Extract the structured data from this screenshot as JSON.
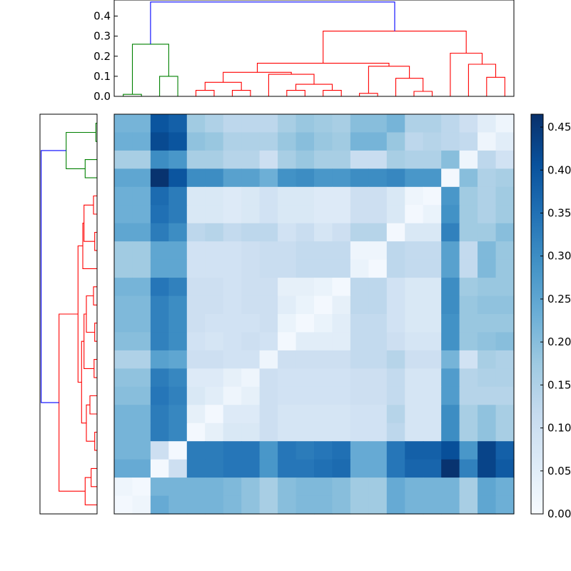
{
  "chart_data": {
    "type": "heatmap",
    "title": "",
    "description_kind": "clustered distance heatmap with dendrograms",
    "n": 22,
    "top_dendrogram": {
      "yticks": [
        "0.0",
        "0.1",
        "0.2",
        "0.3",
        "0.4"
      ],
      "ylim": [
        0,
        0.48
      ],
      "colors": {
        "root": "#0000ff",
        "cluster_a": "#008000",
        "cluster_b": "#ff0000"
      },
      "links": [
        {
          "a": 0,
          "b": 1,
          "h": 0.01,
          "c": "cluster_a"
        },
        {
          "a": 2,
          "b": 3,
          "h": 0.1,
          "c": "cluster_a"
        },
        {
          "a": "L0",
          "b": "L1",
          "h": 0.26,
          "c": "cluster_a"
        },
        {
          "a": 4,
          "b": 5,
          "h": 0.03,
          "c": "cluster_b"
        },
        {
          "a": 6,
          "b": 7,
          "h": 0.03,
          "c": "cluster_b"
        },
        {
          "a": "L3",
          "b": "L4",
          "h": 0.07,
          "c": "cluster_b"
        },
        {
          "a": 9,
          "b": 10,
          "h": 0.03,
          "c": "cluster_b"
        },
        {
          "a": 11,
          "b": 12,
          "h": 0.03,
          "c": "cluster_b"
        },
        {
          "a": "L6",
          "b": "L7",
          "h": 0.06,
          "c": "cluster_b"
        },
        {
          "a": 8,
          "b": "L8",
          "h": 0.11,
          "c": "cluster_b"
        },
        {
          "a": "L5",
          "b": "L9",
          "h": 0.12,
          "c": "cluster_b"
        },
        {
          "a": 13,
          "b": 14,
          "h": 0.015,
          "c": "cluster_b"
        },
        {
          "a": 16,
          "b": 17,
          "h": 0.025,
          "c": "cluster_b"
        },
        {
          "a": 15,
          "b": "L12",
          "h": 0.09,
          "c": "cluster_b"
        },
        {
          "a": "L11",
          "b": "L13",
          "h": 0.15,
          "c": "cluster_b"
        },
        {
          "a": "L10",
          "b": "L14",
          "h": 0.165,
          "c": "cluster_b"
        },
        {
          "a": 20,
          "b": 21,
          "h": 0.095,
          "c": "cluster_b"
        },
        {
          "a": 19,
          "b": "L16",
          "h": 0.16,
          "c": "cluster_b"
        },
        {
          "a": 18,
          "b": "L17",
          "h": 0.215,
          "c": "cluster_b"
        },
        {
          "a": "L15",
          "b": "L18",
          "h": 0.325,
          "c": "cluster_b"
        },
        {
          "a": "L2",
          "b": "L19",
          "h": 0.47,
          "c": "root"
        }
      ]
    },
    "left_dendrogram": {
      "xlim": [
        0,
        0.48
      ],
      "colors": {
        "root": "#0000ff",
        "cluster_a": "#008000",
        "cluster_b": "#ff0000"
      },
      "links": [
        {
          "a": 0,
          "b": 1,
          "h": 0.01,
          "c": "cluster_a"
        },
        {
          "a": 2,
          "b": 3,
          "h": 0.1,
          "c": "cluster_a"
        },
        {
          "a": "L0",
          "b": "L1",
          "h": 0.26,
          "c": "cluster_a"
        },
        {
          "a": 4,
          "b": 5,
          "h": 0.03,
          "c": "cluster_b"
        },
        {
          "a": 6,
          "b": 7,
          "h": 0.02,
          "c": "cluster_b"
        },
        {
          "a": "L3",
          "b": "L4",
          "h": 0.11,
          "c": "cluster_b"
        },
        {
          "a": 8,
          "b": "L5",
          "h": 0.12,
          "c": "cluster_b"
        },
        {
          "a": 9,
          "b": 10,
          "h": 0.03,
          "c": "cluster_b"
        },
        {
          "a": 11,
          "b": 12,
          "h": 0.02,
          "c": "cluster_b"
        },
        {
          "a": "L7",
          "b": "L8",
          "h": 0.09,
          "c": "cluster_b"
        },
        {
          "a": 13,
          "b": 14,
          "h": 0.025,
          "c": "cluster_b"
        },
        {
          "a": "L9",
          "b": "L10",
          "h": 0.11,
          "c": "cluster_b"
        },
        {
          "a": 15,
          "b": 16,
          "h": 0.06,
          "c": "cluster_b"
        },
        {
          "a": 17,
          "b": 18,
          "h": 0.02,
          "c": "cluster_b"
        },
        {
          "a": "L12",
          "b": "L13",
          "h": 0.09,
          "c": "cluster_b"
        },
        {
          "a": "L11",
          "b": "L14",
          "h": 0.13,
          "c": "cluster_b"
        },
        {
          "a": "L6",
          "b": "L15",
          "h": 0.16,
          "c": "cluster_b"
        },
        {
          "a": 19,
          "b": 20,
          "h": 0.05,
          "c": "cluster_b"
        },
        {
          "a": 21,
          "b": "L17",
          "h": 0.1,
          "c": "cluster_b"
        },
        {
          "a": "L16",
          "b": "L18",
          "h": 0.32,
          "c": "cluster_b"
        },
        {
          "a": "L2",
          "b": "L19",
          "h": 0.47,
          "c": "root"
        }
      ]
    },
    "colorbar": {
      "vmin": 0,
      "vmax": 0.465,
      "ticks": [
        "0.00",
        "0.05",
        "0.10",
        "0.15",
        "0.20",
        "0.25",
        "0.30",
        "0.35",
        "0.40",
        "0.45"
      ],
      "colormap": "Blues"
    },
    "matrix": [
      [
        0.22,
        0.22,
        0.4,
        0.38,
        0.17,
        0.15,
        0.13,
        0.13,
        0.13,
        0.16,
        0.18,
        0.17,
        0.16,
        0.2,
        0.2,
        0.22,
        0.15,
        0.15,
        0.13,
        0.1,
        0.05,
        0.02
      ],
      [
        0.23,
        0.23,
        0.42,
        0.4,
        0.19,
        0.18,
        0.15,
        0.15,
        0.15,
        0.18,
        0.2,
        0.18,
        0.17,
        0.22,
        0.22,
        0.18,
        0.13,
        0.14,
        0.13,
        0.12,
        0.02,
        0.05
      ],
      [
        0.16,
        0.16,
        0.3,
        0.28,
        0.16,
        0.16,
        0.14,
        0.14,
        0.1,
        0.16,
        0.18,
        0.16,
        0.16,
        0.11,
        0.11,
        0.16,
        0.15,
        0.15,
        0.2,
        0.02,
        0.13,
        0.09
      ],
      [
        0.25,
        0.25,
        0.46,
        0.4,
        0.3,
        0.3,
        0.26,
        0.26,
        0.23,
        0.29,
        0.3,
        0.28,
        0.28,
        0.3,
        0.3,
        0.31,
        0.28,
        0.28,
        0.01,
        0.2,
        0.15,
        0.16
      ],
      [
        0.23,
        0.23,
        0.36,
        0.33,
        0.07,
        0.07,
        0.06,
        0.07,
        0.09,
        0.07,
        0.07,
        0.06,
        0.06,
        0.1,
        0.1,
        0.07,
        0.02,
        0.01,
        0.28,
        0.17,
        0.15,
        0.17
      ],
      [
        0.23,
        0.23,
        0.35,
        0.33,
        0.07,
        0.07,
        0.06,
        0.07,
        0.09,
        0.07,
        0.07,
        0.06,
        0.06,
        0.1,
        0.1,
        0.07,
        0.01,
        0.03,
        0.29,
        0.17,
        0.15,
        0.17
      ],
      [
        0.25,
        0.25,
        0.33,
        0.3,
        0.13,
        0.14,
        0.12,
        0.13,
        0.13,
        0.09,
        0.11,
        0.08,
        0.1,
        0.14,
        0.14,
        0.01,
        0.07,
        0.07,
        0.32,
        0.17,
        0.17,
        0.2
      ],
      [
        0.17,
        0.17,
        0.25,
        0.25,
        0.09,
        0.09,
        0.09,
        0.1,
        0.11,
        0.11,
        0.12,
        0.12,
        0.12,
        0.02,
        0.02,
        0.13,
        0.12,
        0.12,
        0.26,
        0.12,
        0.21,
        0.18
      ],
      [
        0.17,
        0.17,
        0.25,
        0.25,
        0.09,
        0.09,
        0.09,
        0.1,
        0.11,
        0.11,
        0.12,
        0.12,
        0.12,
        0.03,
        0.01,
        0.13,
        0.12,
        0.12,
        0.26,
        0.12,
        0.21,
        0.18
      ],
      [
        0.22,
        0.22,
        0.34,
        0.32,
        0.1,
        0.1,
        0.09,
        0.1,
        0.1,
        0.04,
        0.04,
        0.03,
        0.01,
        0.13,
        0.13,
        0.09,
        0.07,
        0.07,
        0.3,
        0.17,
        0.18,
        0.18
      ],
      [
        0.21,
        0.21,
        0.32,
        0.3,
        0.1,
        0.1,
        0.09,
        0.1,
        0.1,
        0.05,
        0.03,
        0.01,
        0.04,
        0.13,
        0.13,
        0.09,
        0.07,
        0.07,
        0.3,
        0.18,
        0.19,
        0.19
      ],
      [
        0.21,
        0.21,
        0.32,
        0.3,
        0.1,
        0.09,
        0.09,
        0.09,
        0.1,
        0.03,
        0.01,
        0.03,
        0.05,
        0.12,
        0.12,
        0.09,
        0.07,
        0.07,
        0.29,
        0.18,
        0.18,
        0.18
      ],
      [
        0.2,
        0.2,
        0.32,
        0.3,
        0.09,
        0.08,
        0.09,
        0.1,
        0.09,
        0.01,
        0.05,
        0.05,
        0.05,
        0.12,
        0.12,
        0.1,
        0.08,
        0.08,
        0.29,
        0.18,
        0.19,
        0.2
      ],
      [
        0.15,
        0.15,
        0.26,
        0.25,
        0.1,
        0.1,
        0.09,
        0.09,
        0.02,
        0.1,
        0.1,
        0.1,
        0.1,
        0.12,
        0.12,
        0.14,
        0.1,
        0.1,
        0.22,
        0.09,
        0.16,
        0.15
      ],
      [
        0.19,
        0.19,
        0.33,
        0.31,
        0.06,
        0.06,
        0.04,
        0.02,
        0.1,
        0.09,
        0.09,
        0.09,
        0.09,
        0.1,
        0.1,
        0.12,
        0.08,
        0.08,
        0.27,
        0.14,
        0.15,
        0.15
      ],
      [
        0.2,
        0.2,
        0.34,
        0.32,
        0.07,
        0.05,
        0.02,
        0.04,
        0.1,
        0.09,
        0.09,
        0.09,
        0.09,
        0.1,
        0.1,
        0.12,
        0.08,
        0.08,
        0.27,
        0.14,
        0.14,
        0.14
      ],
      [
        0.22,
        0.22,
        0.33,
        0.31,
        0.04,
        0.01,
        0.06,
        0.06,
        0.1,
        0.08,
        0.08,
        0.08,
        0.08,
        0.09,
        0.09,
        0.14,
        0.08,
        0.08,
        0.3,
        0.16,
        0.19,
        0.16
      ],
      [
        0.22,
        0.22,
        0.33,
        0.31,
        0.01,
        0.04,
        0.07,
        0.07,
        0.1,
        0.08,
        0.08,
        0.08,
        0.08,
        0.09,
        0.09,
        0.13,
        0.08,
        0.08,
        0.3,
        0.16,
        0.19,
        0.16
      ],
      [
        0.22,
        0.22,
        0.1,
        0.01,
        0.33,
        0.33,
        0.34,
        0.34,
        0.28,
        0.34,
        0.33,
        0.34,
        0.35,
        0.24,
        0.24,
        0.34,
        0.38,
        0.38,
        0.41,
        0.28,
        0.43,
        0.38
      ],
      [
        0.24,
        0.24,
        0.01,
        0.1,
        0.33,
        0.33,
        0.34,
        0.34,
        0.28,
        0.34,
        0.34,
        0.35,
        0.36,
        0.24,
        0.24,
        0.34,
        0.37,
        0.37,
        0.46,
        0.32,
        0.43,
        0.39
      ],
      [
        0.02,
        0.01,
        0.22,
        0.22,
        0.22,
        0.22,
        0.21,
        0.19,
        0.16,
        0.2,
        0.21,
        0.21,
        0.2,
        0.17,
        0.17,
        0.24,
        0.22,
        0.22,
        0.22,
        0.16,
        0.25,
        0.23
      ],
      [
        0.01,
        0.02,
        0.24,
        0.22,
        0.22,
        0.22,
        0.21,
        0.19,
        0.16,
        0.2,
        0.21,
        0.21,
        0.2,
        0.17,
        0.17,
        0.24,
        0.22,
        0.22,
        0.22,
        0.16,
        0.25,
        0.23
      ]
    ]
  }
}
